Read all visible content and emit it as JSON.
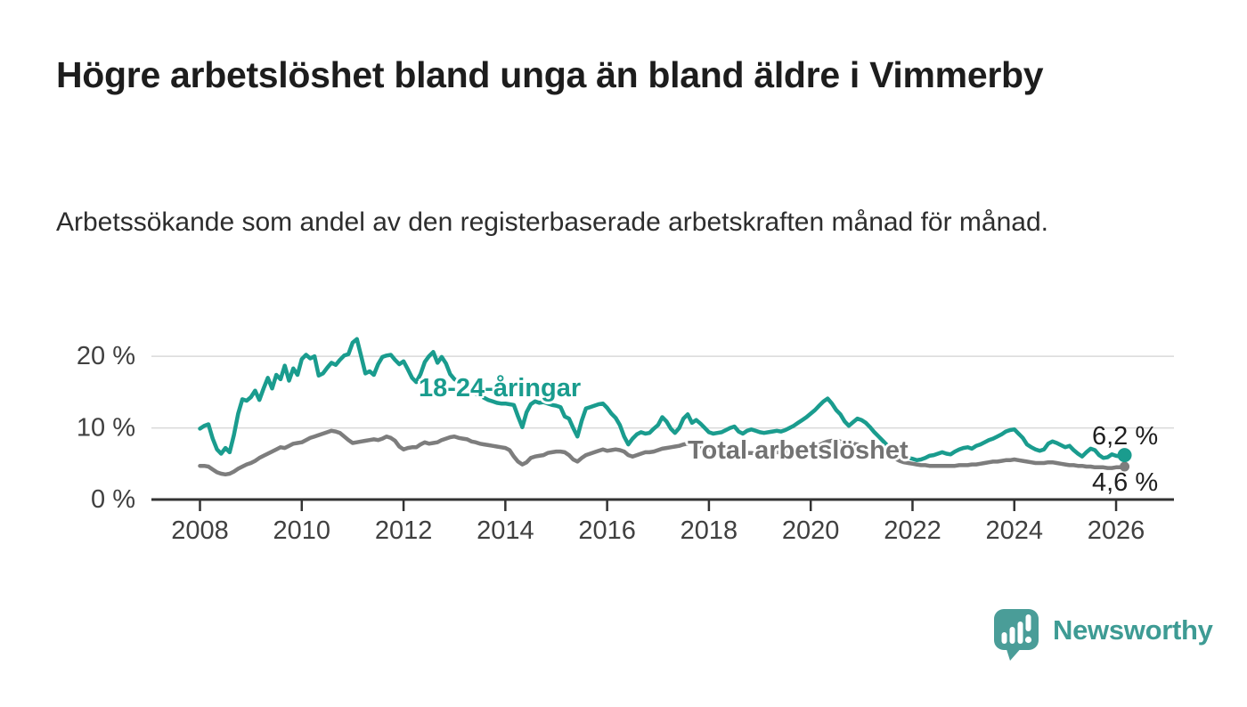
{
  "header": {
    "title": "Högre arbetslöshet bland unga än bland äldre i Vimmerby",
    "subtitle": "Arbetssökande som andel av den registerbaserade arbetskraften månad för månad."
  },
  "labels": {
    "young_series": "18-24-åringar",
    "total_series": "Total arbetslöshet",
    "young_end_value": "6,2 %",
    "total_end_value": "4,6 %"
  },
  "footer": {
    "brand": "Newsworthy"
  },
  "colors": {
    "young_series": "#1a9c8e",
    "total_series": "#7d7d7d",
    "young_label": "#1a9c8e",
    "total_label": "#737373",
    "axis": "#333333",
    "axis_text": "#404040",
    "gridline": "#d9d9d9",
    "value_label": "#1f1f1f",
    "title_text": "#1d1d1d",
    "subtitle_text": "#2d2d2d",
    "logo_mark": "#4a9d98",
    "logo_text": "#3e9b94",
    "background": "#ffffff"
  },
  "chart_data": {
    "type": "line",
    "title": "Högre arbetslöshet bland unga än bland äldre i Vimmerby",
    "subtitle": "Arbetssökande som andel av den registerbaserade arbetskraften månad för månad.",
    "frequency": "monthly",
    "unit": "%",
    "grid": true,
    "legend_position": "inline-labels",
    "x_range": [
      2007.046,
      2027.137
    ],
    "ylim": [
      0,
      23
    ],
    "x_ticks": [
      2008,
      2010,
      2012,
      2014,
      2016,
      2018,
      2020,
      2022,
      2024,
      2026
    ],
    "y_ticks": [
      {
        "value": 0,
        "label": "0 %"
      },
      {
        "value": 10,
        "label": "10 %"
      },
      {
        "value": 20,
        "label": "20 %"
      }
    ],
    "series": [
      {
        "name": "18-24-åringar",
        "color": "#1a9c8e",
        "start_year": 2008,
        "end_label": "6,2 %",
        "values": [
          9.9,
          10.3,
          10.5,
          8.5,
          7.0,
          6.4,
          7.2,
          6.6,
          9.0,
          12.0,
          14.0,
          13.8,
          14.3,
          15.2,
          13.9,
          15.5,
          17.0,
          15.5,
          17.4,
          16.8,
          18.7,
          16.6,
          18.3,
          17.4,
          19.6,
          20.2,
          19.7,
          20.0,
          17.3,
          17.6,
          18.4,
          19.1,
          18.8,
          19.5,
          20.1,
          20.3,
          21.9,
          22.4,
          20.0,
          17.6,
          17.9,
          17.4,
          18.9,
          19.9,
          20.1,
          20.2,
          19.5,
          18.9,
          19.3,
          18.2,
          17.0,
          16.4,
          17.5,
          19.2,
          20.0,
          20.6,
          19.1,
          19.9,
          19.0,
          17.5,
          16.8,
          16.4,
          16.0,
          15.6,
          15.2,
          14.8,
          14.5,
          14.2,
          13.9,
          13.7,
          13.5,
          13.4,
          13.4,
          13.3,
          13.2,
          11.6,
          10.1,
          12.2,
          13.3,
          13.7,
          13.5,
          13.6,
          13.4,
          13.2,
          13.1,
          12.9,
          11.6,
          11.3,
          10.0,
          8.8,
          11.0,
          12.7,
          12.9,
          13.1,
          13.3,
          13.4,
          12.8,
          12.0,
          11.4,
          10.4,
          8.8,
          7.7,
          8.5,
          9.1,
          9.4,
          9.2,
          9.3,
          9.9,
          10.4,
          11.5,
          10.9,
          9.9,
          9.3,
          10.0,
          11.3,
          11.9,
          10.7,
          11.1,
          10.6,
          10.0,
          9.4,
          9.2,
          9.3,
          9.4,
          9.7,
          10.0,
          10.2,
          9.5,
          9.2,
          9.6,
          9.8,
          9.6,
          9.4,
          9.3,
          9.4,
          9.5,
          9.6,
          9.5,
          9.7,
          10.0,
          10.3,
          10.7,
          11.1,
          11.5,
          12.0,
          12.5,
          13.1,
          13.7,
          14.1,
          13.4,
          12.5,
          11.9,
          10.9,
          10.3,
          10.8,
          11.3,
          11.1,
          10.7,
          10.1,
          9.4,
          8.8,
          8.2,
          7.6,
          7.1,
          6.7,
          6.3,
          6.0,
          5.8,
          5.7,
          5.5,
          5.6,
          5.8,
          6.1,
          6.2,
          6.4,
          6.6,
          6.4,
          6.3,
          6.7,
          7.0,
          7.2,
          7.3,
          7.1,
          7.5,
          7.7,
          8.0,
          8.3,
          8.5,
          8.8,
          9.1,
          9.5,
          9.7,
          9.8,
          9.2,
          8.6,
          7.7,
          7.3,
          7.0,
          6.8,
          7.0,
          7.8,
          8.1,
          7.9,
          7.6,
          7.3,
          7.5,
          6.9,
          6.4,
          6.0,
          6.6,
          7.1,
          6.9,
          6.2,
          5.8,
          5.9,
          6.3,
          6.1,
          6.0,
          6.2
        ]
      },
      {
        "name": "Total arbetslöshet",
        "color": "#7d7d7d",
        "start_year": 2008,
        "end_label": "4,6 %",
        "values": [
          4.7,
          4.7,
          4.6,
          4.2,
          3.8,
          3.6,
          3.5,
          3.6,
          3.9,
          4.3,
          4.6,
          4.9,
          5.1,
          5.4,
          5.8,
          6.1,
          6.4,
          6.7,
          7.0,
          7.3,
          7.2,
          7.5,
          7.8,
          7.9,
          8.0,
          8.3,
          8.6,
          8.8,
          9.0,
          9.2,
          9.4,
          9.6,
          9.5,
          9.3,
          8.8,
          8.3,
          7.9,
          8.0,
          8.1,
          8.2,
          8.3,
          8.4,
          8.3,
          8.5,
          8.8,
          8.6,
          8.2,
          7.4,
          7.0,
          7.2,
          7.3,
          7.3,
          7.7,
          8.0,
          7.8,
          7.9,
          8.0,
          8.3,
          8.5,
          8.7,
          8.8,
          8.6,
          8.5,
          8.4,
          8.1,
          8.0,
          7.8,
          7.7,
          7.6,
          7.5,
          7.4,
          7.3,
          7.2,
          6.9,
          6.0,
          5.3,
          4.9,
          5.2,
          5.8,
          6.0,
          6.1,
          6.2,
          6.5,
          6.6,
          6.7,
          6.7,
          6.6,
          6.2,
          5.6,
          5.3,
          5.8,
          6.2,
          6.4,
          6.6,
          6.8,
          7.0,
          6.8,
          6.9,
          7.0,
          6.9,
          6.7,
          6.2,
          6.0,
          6.2,
          6.4,
          6.6,
          6.6,
          6.7,
          6.9,
          7.1,
          7.2,
          7.3,
          7.4,
          7.5,
          7.7,
          7.8,
          7.7,
          7.4,
          7.2,
          7.1,
          7.0,
          7.1,
          7.0,
          6.9,
          6.9,
          6.8,
          6.8,
          6.7,
          6.6,
          6.5,
          6.5,
          6.4,
          6.4,
          6.4,
          6.5,
          6.5,
          6.6,
          6.6,
          6.7,
          6.7,
          6.8,
          6.8,
          6.9,
          7.0,
          7.1,
          7.3,
          7.6,
          7.9,
          8.1,
          8.2,
          8.2,
          8.1,
          8.0,
          7.9,
          7.8,
          7.7,
          7.6,
          7.4,
          7.2,
          7.0,
          6.8,
          6.5,
          6.2,
          6.0,
          5.7,
          5.4,
          5.2,
          5.1,
          5.0,
          4.9,
          4.8,
          4.8,
          4.7,
          4.7,
          4.7,
          4.7,
          4.7,
          4.7,
          4.7,
          4.8,
          4.8,
          4.8,
          4.9,
          4.9,
          5.0,
          5.1,
          5.2,
          5.3,
          5.3,
          5.4,
          5.5,
          5.5,
          5.6,
          5.5,
          5.4,
          5.3,
          5.2,
          5.1,
          5.1,
          5.1,
          5.2,
          5.2,
          5.1,
          5.0,
          4.9,
          4.8,
          4.8,
          4.7,
          4.7,
          4.6,
          4.6,
          4.5,
          4.5,
          4.5,
          4.4,
          4.4,
          4.5,
          4.5,
          4.6
        ]
      }
    ]
  }
}
